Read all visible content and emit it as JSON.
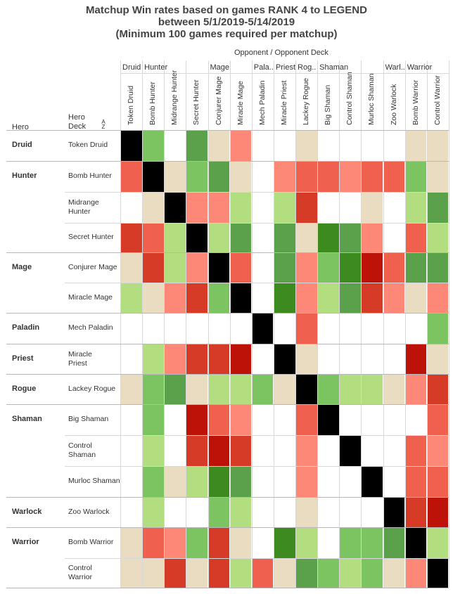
{
  "chart_data": {
    "type": "heatmap",
    "title_lines": [
      "Matchup Win rates based on games RANK 4 to LEGEND",
      "between 5/1/2019-5/14/2019",
      "(Minimum 100 games required per matchup)"
    ],
    "opponent_header": "Opponent  /  Opponent Deck",
    "row_header_hero": "Hero",
    "row_header_deck": "Hero\nDeck",
    "sort_icon_label": "A Z",
    "column_groups": [
      {
        "hero": "Druid",
        "count": 1
      },
      {
        "hero": "Hunter",
        "count": 3
      },
      {
        "hero": "Mage",
        "count": 2
      },
      {
        "hero": "Pala..",
        "count": 1
      },
      {
        "hero": "Priest",
        "count": 1
      },
      {
        "hero": "Rog..",
        "count": 1
      },
      {
        "hero": "Shaman",
        "count": 3
      },
      {
        "hero": "Warl..",
        "count": 1
      },
      {
        "hero": "Warrior",
        "count": 2
      }
    ],
    "columns": [
      "Token Druid",
      "Bomb Hunter",
      "Midrange Hunter",
      "Secret Hunter",
      "Conjurer Mage",
      "Miracle Mage",
      "Mech Paladin",
      "Miracle Priest",
      "Lackey Rogue",
      "Big Shaman",
      "Control Shaman",
      "Murloc Shaman",
      "Zoo Warlock",
      "Bomb Warrior",
      "Control Warrior"
    ],
    "row_groups": [
      {
        "hero": "Druid",
        "decks": [
          "Token Druid"
        ]
      },
      {
        "hero": "Hunter",
        "decks": [
          "Bomb Hunter",
          "Midrange Hunter",
          "Secret Hunter"
        ]
      },
      {
        "hero": "Mage",
        "decks": [
          "Conjurer Mage",
          "Miracle Mage"
        ]
      },
      {
        "hero": "Paladin",
        "decks": [
          "Mech Paladin"
        ]
      },
      {
        "hero": "Priest",
        "decks": [
          "Miracle Priest"
        ]
      },
      {
        "hero": "Rogue",
        "decks": [
          "Lackey Rogue"
        ]
      },
      {
        "hero": "Shaman",
        "decks": [
          "Big Shaman",
          "Control Shaman",
          "Murloc Shaman"
        ]
      },
      {
        "hero": "Warlock",
        "decks": [
          "Zoo Warlock"
        ]
      },
      {
        "hero": "Warrior",
        "decks": [
          "Bomb Warrior",
          "Control Warrior"
        ]
      }
    ],
    "color_legend": {
      "X": "#000000",
      "T": "#e9dcc0",
      "g1": "#b2de80",
      "g2": "#7cc462",
      "g3": "#5ba04a",
      "g4": "#3d8b1e",
      "r1": "#fd8878",
      "r2": "#f0604f",
      "r3": "#d63b27",
      "r4": "#bd1208",
      "_": "#ffffff"
    },
    "cells": [
      [
        "X",
        "g2",
        "_",
        "g3",
        "T",
        "r1",
        "_",
        "_",
        "T",
        "_",
        "_",
        "_",
        "_",
        "T",
        "T"
      ],
      [
        "r2",
        "X",
        "T",
        "g2",
        "g3",
        "T",
        "_",
        "r1",
        "r2",
        "r2",
        "r1",
        "r2",
        "r2",
        "g2",
        "T"
      ],
      [
        "_",
        "T",
        "X",
        "r1",
        "r1",
        "g1",
        "_",
        "g1",
        "r3",
        "_",
        "_",
        "T",
        "_",
        "g1",
        "g3"
      ],
      [
        "r3",
        "r2",
        "g1",
        "X",
        "g1",
        "g3",
        "_",
        "g3",
        "T",
        "g4",
        "g3",
        "r1",
        "_",
        "r2",
        "g1"
      ],
      [
        "T",
        "r3",
        "g1",
        "r1",
        "X",
        "r2",
        "_",
        "g3",
        "r1",
        "g2",
        "g4",
        "r4",
        "r2",
        "g3",
        "g3"
      ],
      [
        "g1",
        "T",
        "r1",
        "r3",
        "g2",
        "X",
        "_",
        "g4",
        "r1",
        "g1",
        "g3",
        "r3",
        "r1",
        "T",
        "r1"
      ],
      [
        "_",
        "_",
        "_",
        "_",
        "_",
        "_",
        "X",
        "_",
        "r2",
        "_",
        "_",
        "_",
        "_",
        "_",
        "g2"
      ],
      [
        "_",
        "g1",
        "r1",
        "r3",
        "r3",
        "r4",
        "_",
        "X",
        "T",
        "_",
        "_",
        "_",
        "_",
        "r4",
        "T"
      ],
      [
        "T",
        "g2",
        "g3",
        "T",
        "g1",
        "g1",
        "g2",
        "T",
        "X",
        "g2",
        "g1",
        "g1",
        "T",
        "r1",
        "r3"
      ],
      [
        "_",
        "g2",
        "_",
        "r4",
        "r2",
        "r1",
        "_",
        "_",
        "r2",
        "X",
        "_",
        "_",
        "_",
        "_",
        "r2"
      ],
      [
        "_",
        "g1",
        "_",
        "r3",
        "r4",
        "r3",
        "_",
        "_",
        "r1",
        "_",
        "X",
        "_",
        "_",
        "r2",
        "r1"
      ],
      [
        "_",
        "g2",
        "T",
        "g1",
        "g4",
        "g3",
        "_",
        "_",
        "r1",
        "_",
        "_",
        "X",
        "_",
        "r2",
        "r2"
      ],
      [
        "_",
        "g1",
        "_",
        "_",
        "g2",
        "g1",
        "_",
        "_",
        "T",
        "_",
        "_",
        "_",
        "X",
        "r3",
        "r4"
      ],
      [
        "T",
        "r2",
        "r1",
        "g2",
        "r3",
        "T",
        "_",
        "g4",
        "g1",
        "_",
        "g2",
        "g2",
        "g3",
        "X",
        "g1"
      ],
      [
        "T",
        "T",
        "r3",
        "T",
        "r3",
        "g1",
        "r2",
        "T",
        "g3",
        "g2",
        "g1",
        "g2",
        "T",
        "r1",
        "X"
      ]
    ]
  }
}
